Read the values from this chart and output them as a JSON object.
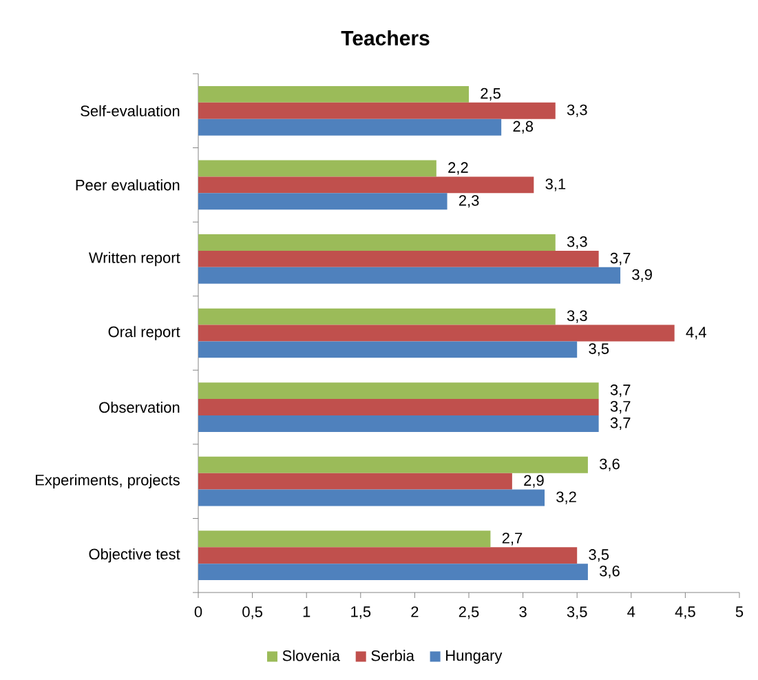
{
  "chart_data": {
    "type": "bar",
    "orientation": "horizontal",
    "title": "Teachers",
    "categories": [
      "Self-evaluation",
      "Peer evaluation",
      "Written report",
      "Oral report",
      "Observation",
      "Experiments, projects",
      "Objective test"
    ],
    "series": [
      {
        "name": "Slovenia",
        "color": "#9bbb59",
        "values": [
          2.5,
          2.2,
          3.3,
          3.3,
          3.7,
          3.6,
          2.7
        ],
        "value_labels": [
          "2,5",
          "2,2",
          "3,3",
          "3,3",
          "3,7",
          "3,6",
          "2,7"
        ]
      },
      {
        "name": "Serbia",
        "color": "#c0504d",
        "values": [
          3.3,
          3.1,
          3.7,
          4.4,
          3.7,
          2.9,
          3.5
        ],
        "value_labels": [
          "3,3",
          "3,1",
          "3,7",
          "4,4",
          "3,7",
          "2,9",
          "3,5"
        ]
      },
      {
        "name": "Hungary",
        "color": "#4f81bd",
        "values": [
          2.8,
          2.3,
          3.9,
          3.5,
          3.7,
          3.2,
          3.6
        ],
        "value_labels": [
          "2,8",
          "2,3",
          "3,9",
          "3,5",
          "3,7",
          "3,2",
          "3,6"
        ]
      }
    ],
    "xlim": [
      0,
      5
    ],
    "xticks": [
      0,
      {
        "value": 0.5,
        "label": "0,5"
      },
      1,
      {
        "value": 1.5,
        "label": "1,5"
      },
      2,
      {
        "value": 2.5,
        "label": "2,5"
      },
      3,
      {
        "value": 3.5,
        "label": "3,5"
      },
      4,
      {
        "value": 4.5,
        "label": "4,5"
      },
      5
    ],
    "legend": "bottom"
  }
}
